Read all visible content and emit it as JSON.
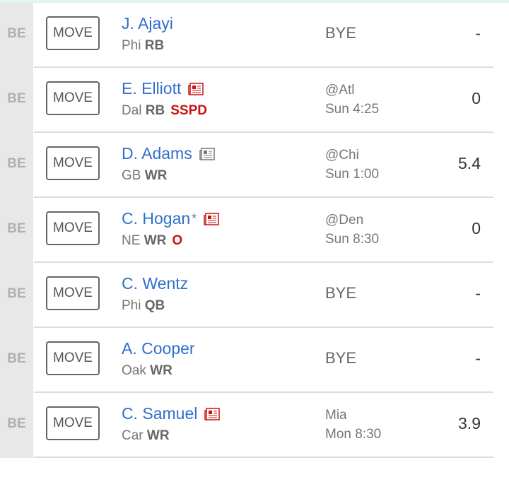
{
  "move_label": "MOVE",
  "colors": {
    "name": "#2f6fcc",
    "status": "#cc1111",
    "news_new": "#cc1111",
    "news_old": "#777777"
  },
  "players": [
    {
      "slot": "BE",
      "name": "J. Ajayi",
      "team": "Phi",
      "pos": "RB",
      "status": "",
      "news": "",
      "star": "",
      "game": [
        "BYE"
      ],
      "points": "-"
    },
    {
      "slot": "BE",
      "name": "E. Elliott",
      "team": "Dal",
      "pos": "RB",
      "status": "SSPD",
      "news": "new",
      "star": "",
      "game": [
        "@Atl",
        "Sun 4:25"
      ],
      "points": "0"
    },
    {
      "slot": "BE",
      "name": "D. Adams",
      "team": "GB",
      "pos": "WR",
      "status": "",
      "news": "old",
      "star": "",
      "game": [
        "@Chi",
        "Sun 1:00"
      ],
      "points": "5.4"
    },
    {
      "slot": "BE",
      "name": "C. Hogan",
      "team": "NE",
      "pos": "WR",
      "status": "O",
      "news": "new",
      "star": "*",
      "game": [
        "@Den",
        "Sun 8:30"
      ],
      "points": "0"
    },
    {
      "slot": "BE",
      "name": "C. Wentz",
      "team": "Phi",
      "pos": "QB",
      "status": "",
      "news": "",
      "star": "",
      "game": [
        "BYE"
      ],
      "points": "-"
    },
    {
      "slot": "BE",
      "name": "A. Cooper",
      "team": "Oak",
      "pos": "WR",
      "status": "",
      "news": "",
      "star": "",
      "game": [
        "BYE"
      ],
      "points": "-"
    },
    {
      "slot": "BE",
      "name": "C. Samuel",
      "team": "Car",
      "pos": "WR",
      "status": "",
      "news": "new",
      "star": "",
      "game": [
        "Mia",
        "Mon 8:30"
      ],
      "points": "3.9"
    }
  ]
}
